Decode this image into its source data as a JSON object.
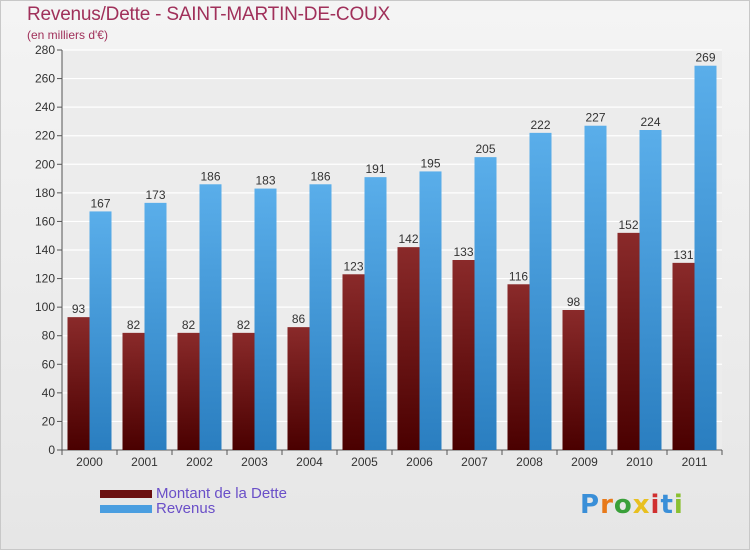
{
  "header": {
    "title": "Revenus/Dette - SAINT-MARTIN-DE-COUX",
    "subtitle": "(en milliers d'€)"
  },
  "chart_data": {
    "type": "bar",
    "title": "Revenus/Dette - SAINT-MARTIN-DE-COUX",
    "subtitle": "(en milliers d'€)",
    "xlabel": "",
    "ylabel": "",
    "ylim": [
      0,
      280
    ],
    "ytick_step": 20,
    "grid": true,
    "legend_position": "bottom-left",
    "categories": [
      "2000",
      "2001",
      "2002",
      "2003",
      "2004",
      "2005",
      "2006",
      "2007",
      "2008",
      "2009",
      "2010",
      "2011"
    ],
    "series": [
      {
        "name": "Montant de la Dette",
        "color": "#7a1a1a",
        "values": [
          93,
          82,
          82,
          82,
          86,
          123,
          142,
          133,
          116,
          98,
          152,
          131
        ]
      },
      {
        "name": "Revenus",
        "color": "#4a9ee0",
        "values": [
          167,
          173,
          186,
          183,
          186,
          191,
          195,
          205,
          222,
          227,
          224,
          269
        ]
      }
    ]
  },
  "legend": {
    "items": [
      {
        "label": "Montant de la Dette",
        "color": "#6b0f0f"
      },
      {
        "label": "Revenus",
        "color": "#4a9ee0"
      }
    ]
  },
  "logo": {
    "letters": [
      "P",
      "r",
      "o",
      "x",
      "i",
      "t",
      "i"
    ],
    "colors": [
      "#3a8fd8",
      "#e87a1a",
      "#3aa03a",
      "#e8c020",
      "#d03030",
      "#3a8fd8",
      "#8ac030"
    ]
  }
}
